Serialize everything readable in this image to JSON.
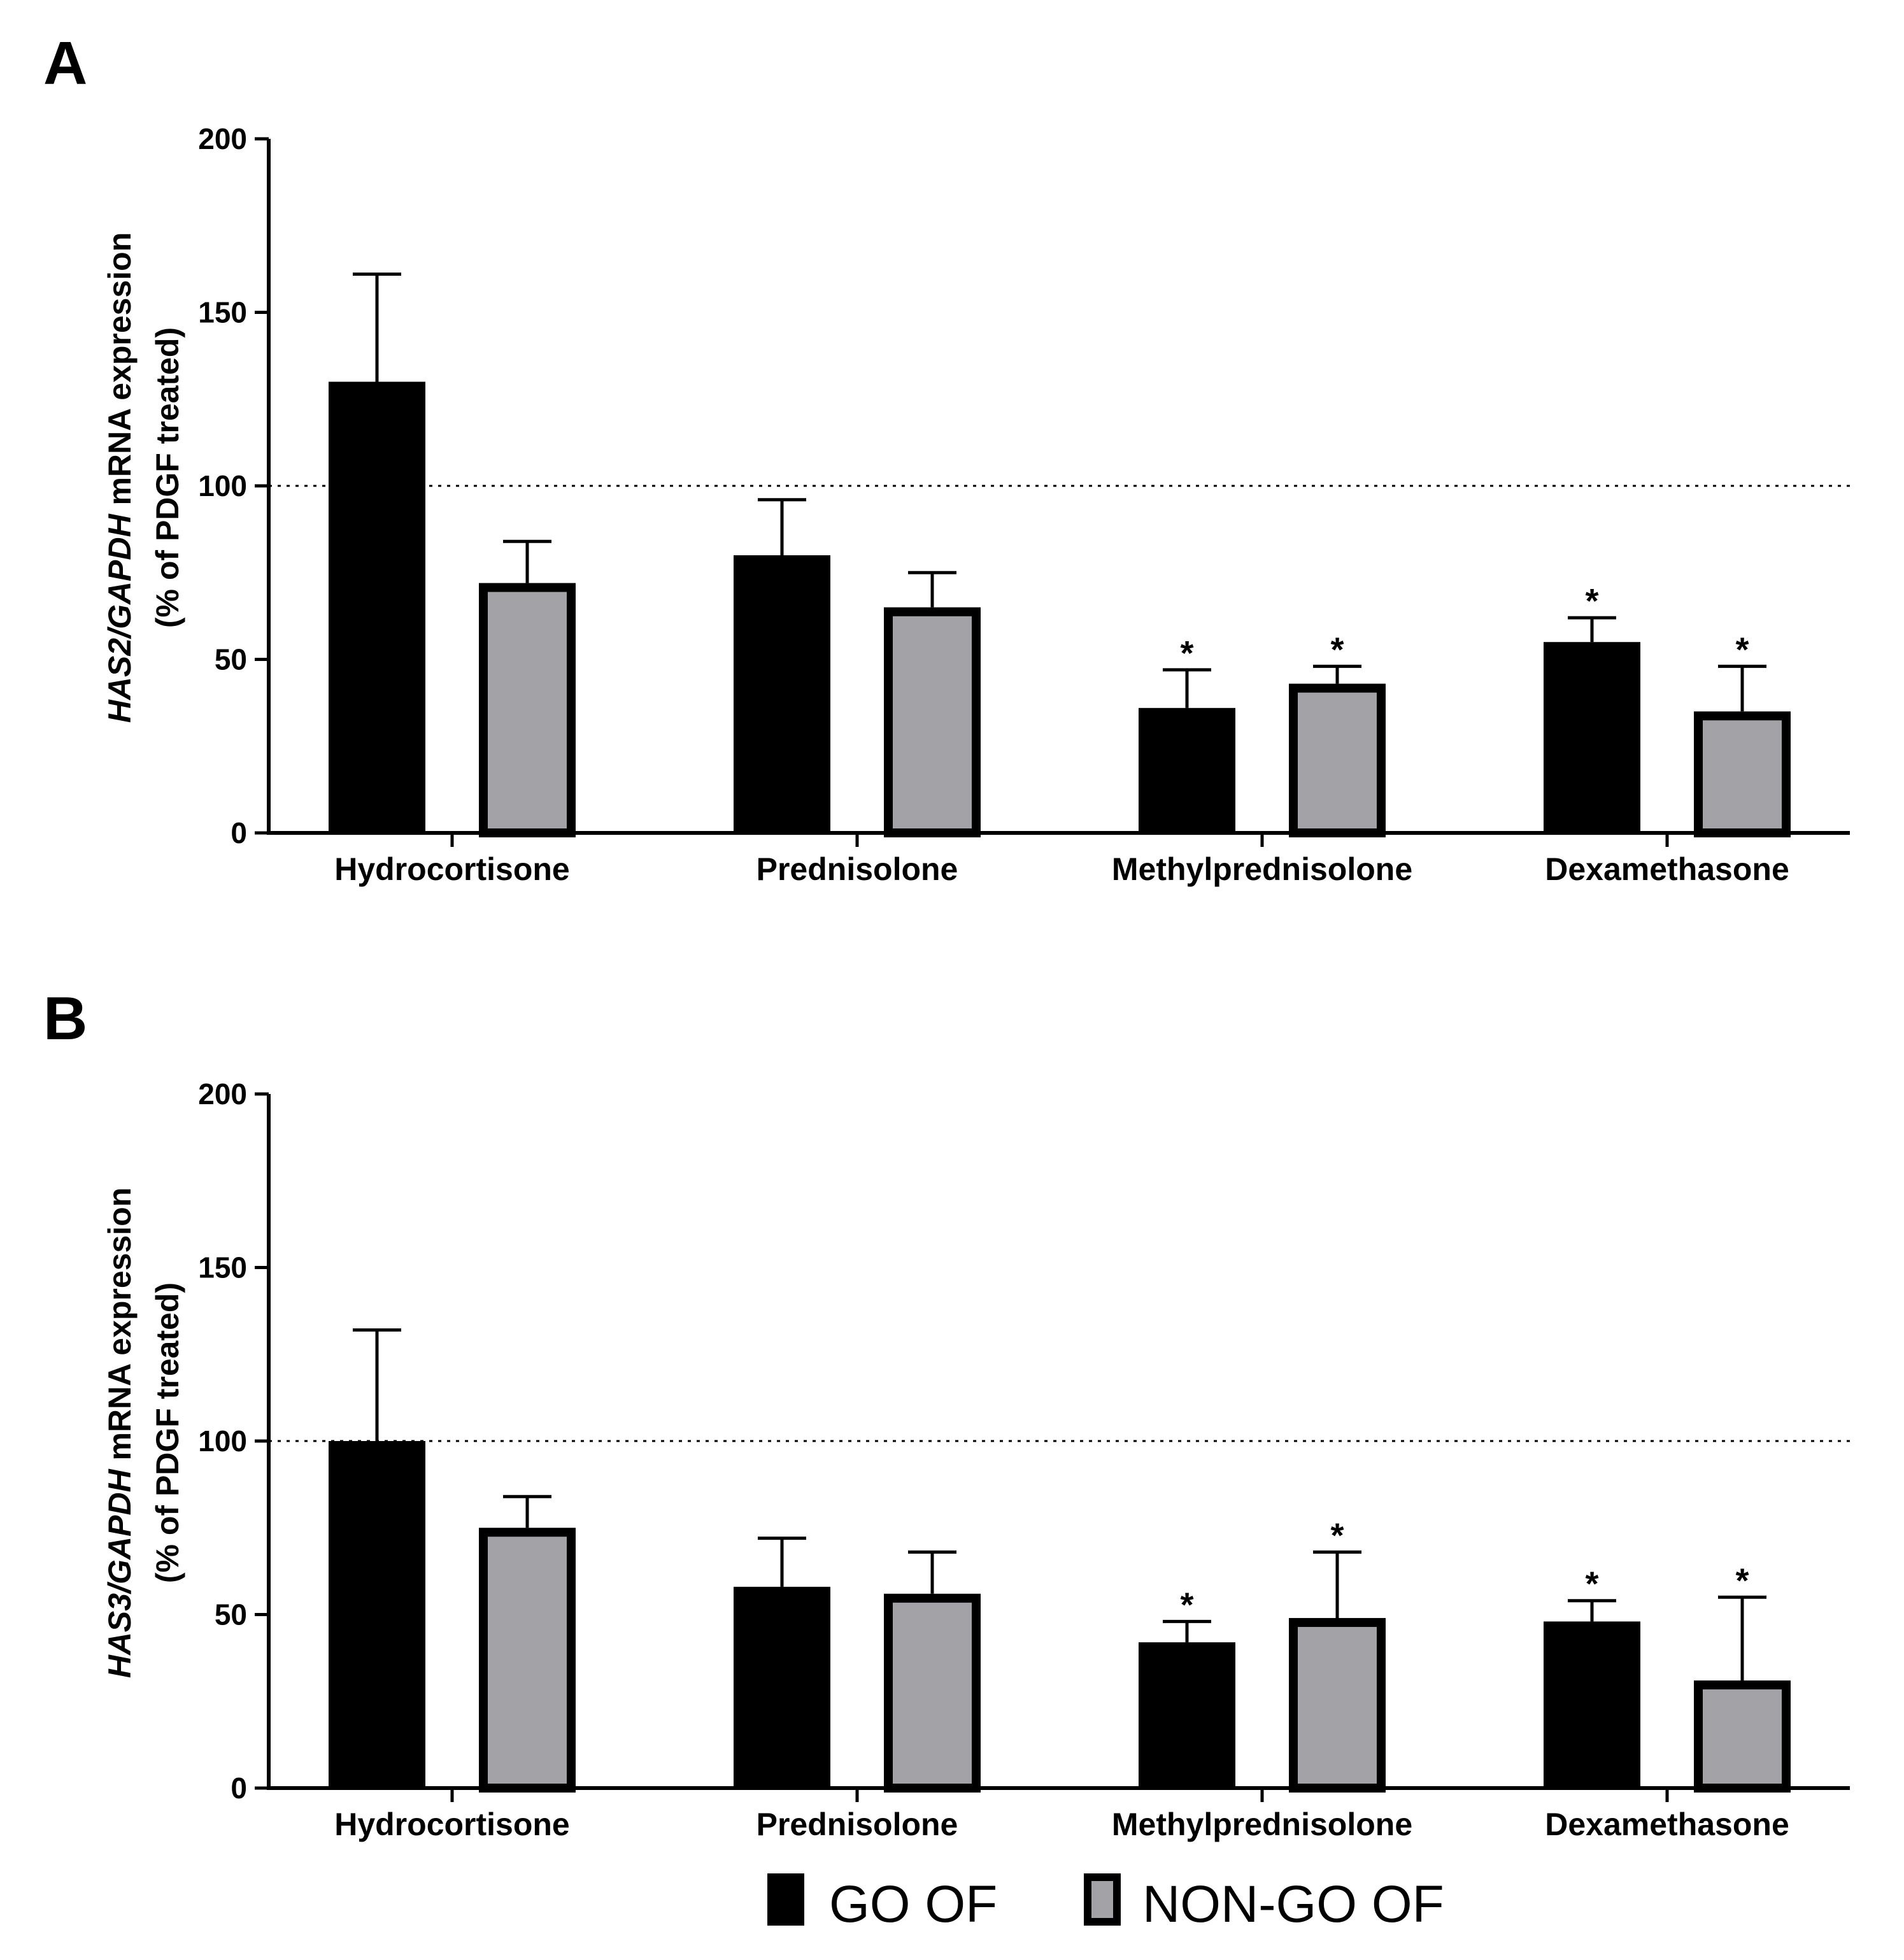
{
  "colors": {
    "go": "#000000",
    "non_go": "#a3a3a7",
    "axis": "#000000"
  },
  "legend": [
    {
      "name": "GO OF",
      "color": "#000000"
    },
    {
      "name": "NON-GO OF",
      "color": "#a3a3a7"
    }
  ],
  "chart_data": [
    {
      "panel": "A",
      "type": "bar",
      "ylabel_italic": "HAS2/GAPDH",
      "ylabel_rest": " mRNA expression",
      "ylabel_line2": "(% of PDGF treated)",
      "ylim": [
        0,
        200
      ],
      "yticks": [
        "0",
        "50",
        "100",
        "150",
        "200"
      ],
      "reference_line": 100,
      "categories": [
        "Hydrocortisone",
        "Prednisolone",
        "Methylprednisolone",
        "Dexamethasone"
      ],
      "series": [
        {
          "name": "GO OF",
          "values": [
            130,
            80,
            36,
            55
          ],
          "errors": [
            31,
            16,
            11,
            7
          ],
          "significant": [
            false,
            false,
            true,
            true
          ]
        },
        {
          "name": "NON-GO OF",
          "values": [
            72,
            65,
            43,
            35
          ],
          "errors": [
            12,
            10,
            5,
            13
          ],
          "significant": [
            false,
            false,
            true,
            true
          ]
        }
      ],
      "significance_marker": "*"
    },
    {
      "panel": "B",
      "type": "bar",
      "ylabel_italic": "HAS3/GAPDH",
      "ylabel_rest": " mRNA expression",
      "ylabel_line2": "(% of PDGF treated)",
      "ylim": [
        0,
        200
      ],
      "yticks": [
        "0",
        "50",
        "100",
        "150",
        "200"
      ],
      "reference_line": 100,
      "categories": [
        "Hydrocortisone",
        "Prednisolone",
        "Methylprednisolone",
        "Dexamethasone"
      ],
      "series": [
        {
          "name": "GO OF",
          "values": [
            100,
            58,
            42,
            48
          ],
          "errors": [
            32,
            14,
            6,
            6
          ],
          "significant": [
            false,
            false,
            true,
            true
          ]
        },
        {
          "name": "NON-GO OF",
          "values": [
            75,
            56,
            49,
            31
          ],
          "errors": [
            9,
            12,
            19,
            24
          ],
          "significant": [
            false,
            false,
            true,
            true
          ]
        }
      ],
      "significance_marker": "*"
    }
  ]
}
